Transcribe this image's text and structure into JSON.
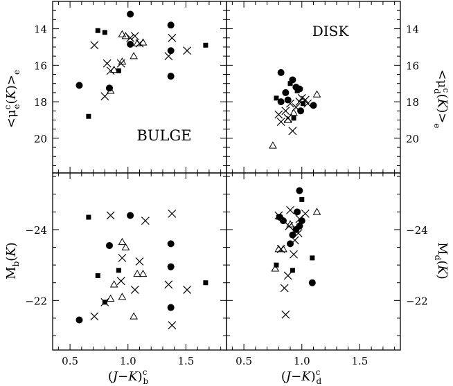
{
  "chart_data": [
    {
      "id": "bulge_sb",
      "type": "scatter",
      "annotation": "BULGE",
      "xlim": [
        0.35,
        1.85
      ],
      "ylim": [
        21.9,
        12.5
      ],
      "xticks": [],
      "yticks": [
        "14",
        "16",
        "18",
        "20"
      ],
      "ylabel": "<μ_e^c(K)>_e",
      "series": [
        {
          "marker": "circle",
          "points": [
            [
              0.58,
              17.1
            ],
            [
              0.84,
              17.25
            ],
            [
              1.02,
              13.2
            ],
            [
              1.02,
              14.85
            ],
            [
              1.37,
              13.8
            ],
            [
              1.37,
              15.2
            ],
            [
              1.37,
              16.6
            ]
          ]
        },
        {
          "marker": "square",
          "points": [
            [
              0.66,
              18.8
            ],
            [
              0.74,
              14.1
            ],
            [
              0.8,
              14.2
            ],
            [
              0.92,
              16.3
            ],
            [
              1.67,
              14.9
            ]
          ]
        },
        {
          "marker": "cross",
          "points": [
            [
              0.71,
              14.9
            ],
            [
              0.8,
              17.7
            ],
            [
              0.85,
              16.3
            ],
            [
              0.82,
              15.9
            ],
            [
              0.94,
              15.9
            ],
            [
              1.06,
              14.4
            ],
            [
              1.1,
              14.8
            ],
            [
              1.02,
              14.5
            ],
            [
              1.35,
              15.5
            ],
            [
              1.38,
              14.5
            ],
            [
              1.51,
              15.2
            ]
          ]
        },
        {
          "marker": "triangle",
          "points": [
            [
              0.85,
              17.4
            ],
            [
              0.88,
              16.25
            ],
            [
              0.95,
              15.8
            ],
            [
              0.95,
              14.3
            ],
            [
              0.98,
              14.4
            ],
            [
              1.05,
              15.5
            ],
            [
              1.08,
              14.8
            ],
            [
              1.13,
              14.75
            ]
          ]
        }
      ]
    },
    {
      "id": "disk_sb",
      "type": "scatter",
      "annotation": "DISK",
      "xlim": [
        0.35,
        1.85
      ],
      "ylim": [
        21.9,
        12.5
      ],
      "xticks": [],
      "yticks": [
        "14",
        "16",
        "18",
        "20"
      ],
      "ylabel": "<μ_d^c(K)>_e",
      "series": [
        {
          "marker": "circle",
          "points": [
            [
              0.82,
              16.4
            ],
            [
              0.82,
              18.0
            ],
            [
              0.86,
              17.5
            ],
            [
              0.88,
              17.9
            ],
            [
              0.92,
              16.8
            ],
            [
              0.95,
              17.2
            ],
            [
              0.98,
              17.3
            ],
            [
              0.99,
              18.5
            ],
            [
              1.1,
              18.2
            ]
          ]
        },
        {
          "marker": "square",
          "points": [
            [
              0.78,
              17.8
            ],
            [
              0.9,
              17.0
            ],
            [
              0.93,
              18.9
            ],
            [
              0.96,
              17.4
            ],
            [
              1.01,
              18.1
            ]
          ]
        },
        {
          "marker": "cross",
          "points": [
            [
              0.8,
              18.7
            ],
            [
              0.82,
              19.1
            ],
            [
              0.86,
              18.5
            ],
            [
              0.88,
              18.9
            ],
            [
              0.9,
              18.1
            ],
            [
              0.92,
              19.6
            ],
            [
              0.95,
              18.3
            ],
            [
              0.98,
              18.0
            ],
            [
              1.0,
              17.8
            ],
            [
              1.03,
              17.9
            ],
            [
              1.05,
              18.1
            ]
          ]
        },
        {
          "marker": "triangle",
          "points": [
            [
              0.75,
              20.4
            ],
            [
              0.88,
              19.0
            ],
            [
              0.93,
              18.6
            ],
            [
              1.13,
              17.6
            ]
          ]
        }
      ]
    },
    {
      "id": "bulge_mag",
      "type": "scatter",
      "xlim": [
        0.35,
        1.85
      ],
      "ylim": [
        -20.6,
        -25.6
      ],
      "xticks": [
        "0.5",
        "1.0",
        "1.5"
      ],
      "yticks": [
        "−24",
        "−22"
      ],
      "xlabel": "(J−K)_b^c",
      "ylabel": "M_b(K)",
      "series": [
        {
          "marker": "circle",
          "points": [
            [
              0.58,
              -21.45
            ],
            [
              0.84,
              -23.55
            ],
            [
              1.02,
              -24.4
            ],
            [
              1.37,
              -23.6
            ],
            [
              1.37,
              -22.95
            ],
            [
              1.37,
              -21.8
            ]
          ]
        },
        {
          "marker": "square",
          "points": [
            [
              0.66,
              -24.35
            ],
            [
              0.74,
              -22.7
            ],
            [
              0.8,
              -21.95
            ],
            [
              0.92,
              -22.85
            ],
            [
              1.67,
              -22.5
            ]
          ]
        },
        {
          "marker": "cross",
          "points": [
            [
              0.71,
              -21.55
            ],
            [
              0.8,
              -21.95
            ],
            [
              0.85,
              -24.4
            ],
            [
              0.94,
              -22.55
            ],
            [
              0.95,
              -23.2
            ],
            [
              1.06,
              -22.3
            ],
            [
              1.1,
              -23.1
            ],
            [
              1.15,
              -24.25
            ],
            [
              1.35,
              -22.45
            ],
            [
              1.38,
              -24.45
            ],
            [
              1.38,
              -21.3
            ],
            [
              1.51,
              -22.3
            ]
          ]
        },
        {
          "marker": "triangle",
          "points": [
            [
              0.85,
              -22.05
            ],
            [
              0.88,
              -22.45
            ],
            [
              0.95,
              -23.65
            ],
            [
              0.95,
              -22.1
            ],
            [
              0.98,
              -23.5
            ],
            [
              1.05,
              -21.55
            ],
            [
              1.08,
              -22.75
            ],
            [
              1.13,
              -22.75
            ]
          ]
        }
      ]
    },
    {
      "id": "disk_mag",
      "type": "scatter",
      "xlim": [
        0.35,
        1.85
      ],
      "ylim": [
        -20.6,
        -25.6
      ],
      "xticks": [
        "0.5",
        "1.0",
        "1.5"
      ],
      "yticks": [
        "−24",
        "−22"
      ],
      "xlabel": "(J−K)_d^c",
      "ylabel": "M_d(K)",
      "series": [
        {
          "marker": "circle",
          "points": [
            [
              0.81,
              -24.35
            ],
            [
              0.84,
              -24.25
            ],
            [
              0.9,
              -23.6
            ],
            [
              0.92,
              -23.85
            ],
            [
              0.95,
              -24.0
            ],
            [
              0.96,
              -24.5
            ],
            [
              0.98,
              -25.1
            ],
            [
              0.98,
              -24.1
            ],
            [
              1.0,
              -24.25
            ],
            [
              1.09,
              -22.5
            ]
          ]
        },
        {
          "marker": "square",
          "points": [
            [
              0.78,
              -23.0
            ],
            [
              0.8,
              -24.35
            ],
            [
              0.92,
              -22.85
            ],
            [
              1.0,
              -24.85
            ],
            [
              1.09,
              -23.2
            ]
          ]
        },
        {
          "marker": "cross",
          "points": [
            [
              0.8,
              -24.4
            ],
            [
              0.82,
              -23.45
            ],
            [
              0.85,
              -22.35
            ],
            [
              0.86,
              -21.6
            ],
            [
              0.88,
              -22.7
            ],
            [
              0.89,
              -24.1
            ],
            [
              0.9,
              -24.55
            ],
            [
              0.93,
              -23.3
            ],
            [
              0.94,
              -23.7
            ],
            [
              0.97,
              -23.9
            ],
            [
              1.03,
              -24.45
            ],
            [
              0.98,
              -24.3
            ]
          ]
        },
        {
          "marker": "triangle",
          "points": [
            [
              0.77,
              -22.9
            ],
            [
              0.8,
              -23.45
            ],
            [
              0.84,
              -23.45
            ],
            [
              0.9,
              -24.15
            ],
            [
              1.13,
              -24.5
            ]
          ]
        }
      ]
    }
  ]
}
